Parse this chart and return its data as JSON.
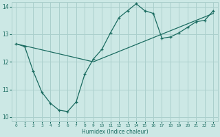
{
  "xlabel": "Humidex (Indice chaleur)",
  "bg_color": "#cce8e5",
  "grid_color": "#aacfcc",
  "line_color": "#1a6b60",
  "xlim": [
    -0.5,
    23.5
  ],
  "ylim": [
    9.85,
    14.15
  ],
  "yticks": [
    10,
    11,
    12,
    13,
    14
  ],
  "xticks": [
    0,
    1,
    2,
    3,
    4,
    5,
    6,
    7,
    8,
    9,
    10,
    11,
    12,
    13,
    14,
    15,
    16,
    17,
    18,
    19,
    20,
    21,
    22,
    23
  ],
  "line1_x": [
    0,
    1,
    2,
    3,
    4,
    5,
    6,
    7,
    8,
    9,
    10,
    11,
    12,
    13,
    14,
    15,
    16,
    17,
    18,
    19,
    20,
    21,
    22,
    23
  ],
  "line1_y": [
    12.65,
    12.55,
    11.65,
    10.9,
    10.5,
    10.25,
    10.2,
    10.55,
    11.55,
    12.1,
    12.45,
    13.05,
    13.6,
    13.85,
    14.1,
    13.85,
    13.75,
    12.85,
    12.9,
    13.05,
    13.25,
    13.45,
    13.5,
    13.85
  ],
  "line2_x": [
    0,
    9,
    23
  ],
  "line2_y": [
    12.65,
    12.0,
    13.75
  ]
}
